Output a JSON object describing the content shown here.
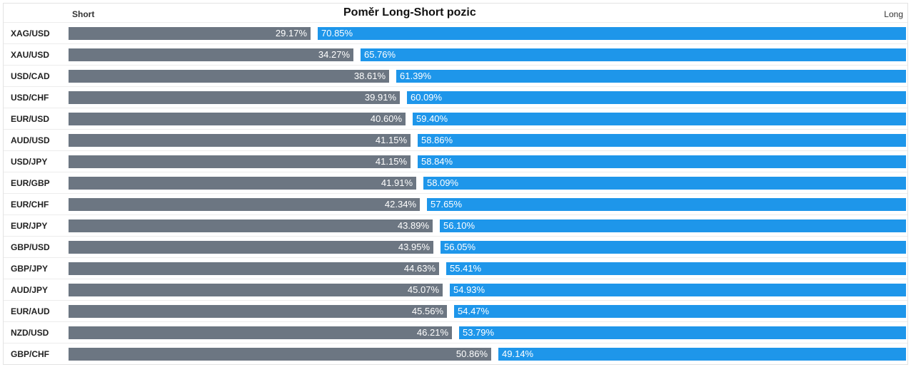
{
  "chart_data": {
    "type": "bar",
    "stacked": true,
    "orientation": "horizontal",
    "title": "Poměr Long-Short pozic",
    "short_label": "Short",
    "long_label": "Long",
    "categories": [
      "XAG/USD",
      "XAU/USD",
      "USD/CAD",
      "USD/CHF",
      "EUR/USD",
      "AUD/USD",
      "USD/JPY",
      "EUR/GBP",
      "EUR/CHF",
      "EUR/JPY",
      "GBP/USD",
      "GBP/JPY",
      "AUD/JPY",
      "EUR/AUD",
      "NZD/USD",
      "GBP/CHF"
    ],
    "series": [
      {
        "name": "Short",
        "color": "#6c7682",
        "values": [
          29.17,
          34.27,
          38.61,
          39.91,
          40.6,
          41.15,
          41.15,
          41.91,
          42.34,
          43.89,
          43.95,
          44.63,
          45.07,
          45.56,
          46.21,
          50.86
        ],
        "labels": [
          "29.17%",
          "34.27%",
          "38.61%",
          "39.91%",
          "40.60%",
          "41.15%",
          "41.15%",
          "41.91%",
          "42.34%",
          "43.89%",
          "43.95%",
          "44.63%",
          "45.07%",
          "45.56%",
          "46.21%",
          "50.86%"
        ]
      },
      {
        "name": "Long",
        "color": "#1e96ea",
        "values": [
          70.85,
          65.76,
          61.39,
          60.09,
          59.4,
          58.86,
          58.84,
          58.09,
          57.65,
          56.1,
          56.05,
          55.41,
          54.93,
          54.47,
          53.79,
          49.14
        ],
        "labels": [
          "70.85%",
          "65.76%",
          "61.39%",
          "60.09%",
          "59.40%",
          "58.86%",
          "58.84%",
          "58.09%",
          "57.65%",
          "56.10%",
          "56.05%",
          "55.41%",
          "54.93%",
          "54.47%",
          "53.79%",
          "49.14%"
        ]
      }
    ],
    "xlim": [
      0,
      100
    ],
    "grid": false,
    "legend": "none"
  }
}
